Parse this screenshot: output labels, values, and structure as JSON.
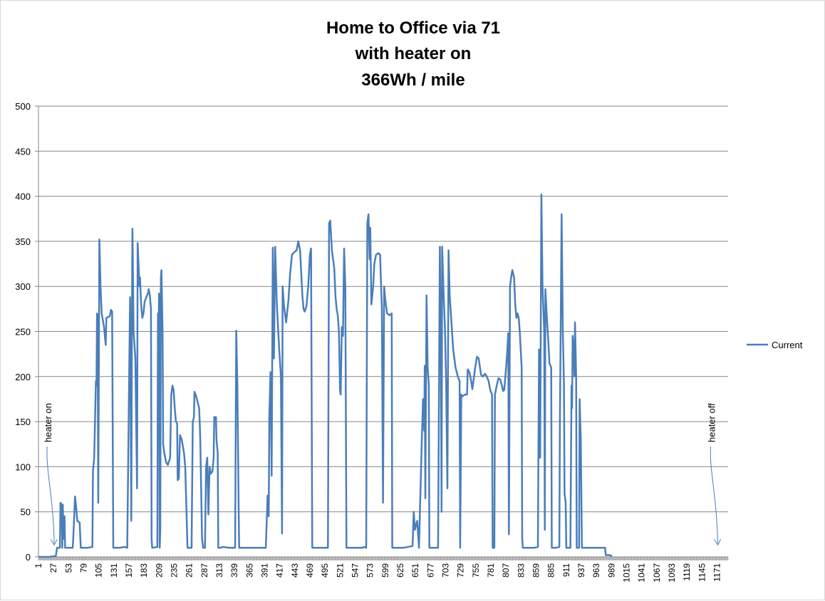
{
  "chart_data": {
    "type": "line",
    "title": [
      "Home to Office via 71",
      "with heater on",
      "366Wh / mile"
    ],
    "xlabel": "",
    "ylabel": "",
    "ylim": [
      0,
      500
    ],
    "yticks": [
      0,
      50,
      100,
      150,
      200,
      250,
      300,
      350,
      400,
      450,
      500
    ],
    "xlim": [
      1,
      1190
    ],
    "xticks": [
      1,
      27,
      53,
      79,
      105,
      131,
      157,
      183,
      209,
      235,
      261,
      287,
      313,
      339,
      365,
      391,
      417,
      443,
      469,
      495,
      521,
      547,
      573,
      599,
      625,
      651,
      677,
      703,
      729,
      755,
      781,
      807,
      833,
      859,
      885,
      911,
      937,
      963,
      989,
      1015,
      1041,
      1067,
      1093,
      1119,
      1145,
      1171
    ],
    "grid": true,
    "legend_position": "right",
    "series": [
      {
        "name": "Current",
        "color": "#4a7ebb",
        "points": [
          [
            1,
            0
          ],
          [
            20,
            0
          ],
          [
            31,
            1
          ],
          [
            33,
            10
          ],
          [
            38,
            10
          ],
          [
            39,
            60
          ],
          [
            41,
            58
          ],
          [
            42,
            10
          ],
          [
            43,
            58
          ],
          [
            44,
            20
          ],
          [
            46,
            45
          ],
          [
            47,
            10
          ],
          [
            60,
            10
          ],
          [
            61,
            20
          ],
          [
            64,
            67
          ],
          [
            66,
            55
          ],
          [
            68,
            40
          ],
          [
            72,
            38
          ],
          [
            74,
            10
          ],
          [
            86,
            10
          ],
          [
            94,
            11
          ],
          [
            95,
            95
          ],
          [
            97,
            110
          ],
          [
            100,
            195
          ],
          [
            101,
            190
          ],
          [
            102,
            270
          ],
          [
            103,
            265
          ],
          [
            104,
            60
          ],
          [
            106,
            352
          ],
          [
            108,
            300
          ],
          [
            110,
            270
          ],
          [
            114,
            255
          ],
          [
            117,
            235
          ],
          [
            118,
            265
          ],
          [
            124,
            267
          ],
          [
            126,
            274
          ],
          [
            128,
            272
          ],
          [
            130,
            10
          ],
          [
            140,
            10
          ],
          [
            150,
            11
          ],
          [
            154,
            10
          ],
          [
            157,
            180
          ],
          [
            159,
            288
          ],
          [
            161,
            40
          ],
          [
            162,
            250
          ],
          [
            163,
            364
          ],
          [
            165,
            250
          ],
          [
            168,
            220
          ],
          [
            171,
            76
          ],
          [
            172,
            348
          ],
          [
            175,
            300
          ],
          [
            176,
            310
          ],
          [
            178,
            280
          ],
          [
            180,
            265
          ],
          [
            182,
            270
          ],
          [
            184,
            283
          ],
          [
            190,
            293
          ],
          [
            191,
            297
          ],
          [
            193,
            290
          ],
          [
            195,
            275
          ],
          [
            196,
            20
          ],
          [
            197,
            10
          ],
          [
            206,
            11
          ],
          [
            207,
            270
          ],
          [
            208,
            250
          ],
          [
            209,
            292
          ],
          [
            210,
            10
          ],
          [
            211,
            30
          ],
          [
            212,
            310
          ],
          [
            213,
            318
          ],
          [
            215,
            250
          ],
          [
            216,
            125
          ],
          [
            218,
            115
          ],
          [
            221,
            105
          ],
          [
            224,
            102
          ],
          [
            228,
            110
          ],
          [
            230,
            180
          ],
          [
            232,
            190
          ],
          [
            234,
            185
          ],
          [
            236,
            165
          ],
          [
            238,
            150
          ],
          [
            240,
            148
          ],
          [
            241,
            85
          ],
          [
            243,
            87
          ],
          [
            245,
            135
          ],
          [
            248,
            130
          ],
          [
            252,
            115
          ],
          [
            254,
            100
          ],
          [
            258,
            10
          ],
          [
            265,
            10
          ],
          [
            267,
            150
          ],
          [
            269,
            155
          ],
          [
            270,
            183
          ],
          [
            272,
            180
          ],
          [
            276,
            170
          ],
          [
            278,
            165
          ],
          [
            279,
            150
          ],
          [
            280,
            130
          ],
          [
            283,
            20
          ],
          [
            285,
            10
          ],
          [
            288,
            10
          ],
          [
            290,
            100
          ],
          [
            292,
            110
          ],
          [
            294,
            47
          ],
          [
            296,
            100
          ],
          [
            298,
            92
          ],
          [
            301,
            95
          ],
          [
            303,
            110
          ],
          [
            304,
            155
          ],
          [
            307,
            155
          ],
          [
            308,
            130
          ],
          [
            310,
            115
          ],
          [
            311,
            10
          ],
          [
            314,
            10
          ],
          [
            320,
            11
          ],
          [
            330,
            10
          ],
          [
            340,
            10
          ],
          [
            342,
            251
          ],
          [
            344,
            190
          ],
          [
            346,
            60
          ],
          [
            347,
            10
          ],
          [
            380,
            10
          ],
          [
            385,
            10
          ],
          [
            393,
            10
          ],
          [
            396,
            68
          ],
          [
            398,
            45
          ],
          [
            399,
            155
          ],
          [
            401,
            205
          ],
          [
            403,
            90
          ],
          [
            405,
            343
          ],
          [
            407,
            220
          ],
          [
            409,
            344
          ],
          [
            412,
            280
          ],
          [
            416,
            230
          ],
          [
            418,
            210
          ],
          [
            419,
            200
          ],
          [
            421,
            26
          ],
          [
            422,
            300
          ],
          [
            424,
            280
          ],
          [
            428,
            260
          ],
          [
            432,
            285
          ],
          [
            435,
            315
          ],
          [
            438,
            335
          ],
          [
            442,
            338
          ],
          [
            446,
            340
          ],
          [
            449,
            350
          ],
          [
            452,
            340
          ],
          [
            456,
            290
          ],
          [
            458,
            275
          ],
          [
            460,
            272
          ],
          [
            463,
            278
          ],
          [
            466,
            300
          ],
          [
            469,
            335
          ],
          [
            471,
            342
          ],
          [
            473,
            10
          ],
          [
            482,
            10
          ],
          [
            500,
            10
          ],
          [
            502,
            370
          ],
          [
            504,
            373
          ],
          [
            507,
            340
          ],
          [
            511,
            320
          ],
          [
            513,
            290
          ],
          [
            515,
            275
          ],
          [
            517,
            268
          ],
          [
            519,
            250
          ],
          [
            521,
            185
          ],
          [
            522,
            180
          ],
          [
            524,
            255
          ],
          [
            526,
            245
          ],
          [
            528,
            342
          ],
          [
            530,
            300
          ],
          [
            532,
            10
          ],
          [
            534,
            10
          ],
          [
            560,
            10
          ],
          [
            562,
            11
          ],
          [
            566,
            10
          ],
          [
            568,
            370
          ],
          [
            570,
            380
          ],
          [
            572,
            330
          ],
          [
            573,
            365
          ],
          [
            575,
            280
          ],
          [
            578,
            300
          ],
          [
            580,
            325
          ],
          [
            583,
            335
          ],
          [
            587,
            337
          ],
          [
            590,
            335
          ],
          [
            593,
            275
          ],
          [
            595,
            60
          ],
          [
            597,
            300
          ],
          [
            599,
            285
          ],
          [
            602,
            270
          ],
          [
            606,
            268
          ],
          [
            610,
            270
          ],
          [
            611,
            10
          ],
          [
            630,
            10
          ],
          [
            646,
            12
          ],
          [
            648,
            50
          ],
          [
            650,
            30
          ],
          [
            654,
            40
          ],
          [
            657,
            10
          ],
          [
            662,
            130
          ],
          [
            664,
            175
          ],
          [
            666,
            140
          ],
          [
            667,
            212
          ],
          [
            668,
            65
          ],
          [
            670,
            290
          ],
          [
            672,
            210
          ],
          [
            674,
            190
          ],
          [
            675,
            10
          ],
          [
            683,
            10
          ],
          [
            690,
            10
          ],
          [
            693,
            344
          ],
          [
            695,
            200
          ],
          [
            696,
            50
          ],
          [
            697,
            344
          ],
          [
            699,
            300
          ],
          [
            702,
            250
          ],
          [
            704,
            190
          ],
          [
            706,
            76
          ],
          [
            708,
            340
          ],
          [
            710,
            290
          ],
          [
            713,
            260
          ],
          [
            716,
            230
          ],
          [
            720,
            210
          ],
          [
            724,
            200
          ],
          [
            727,
            195
          ],
          [
            728,
            10
          ],
          [
            730,
            180
          ],
          [
            732,
            178
          ],
          [
            736,
            180
          ],
          [
            740,
            180
          ],
          [
            741,
            208
          ],
          [
            744,
            205
          ],
          [
            747,
            195
          ],
          [
            749,
            186
          ],
          [
            752,
            200
          ],
          [
            754,
            210
          ],
          [
            757,
            222
          ],
          [
            760,
            220
          ],
          [
            764,
            202
          ],
          [
            767,
            200
          ],
          [
            771,
            203
          ],
          [
            774,
            200
          ],
          [
            777,
            195
          ],
          [
            780,
            185
          ],
          [
            783,
            180
          ],
          [
            784,
            10
          ],
          [
            787,
            10
          ],
          [
            788,
            180
          ],
          [
            791,
            190
          ],
          [
            794,
            198
          ],
          [
            797,
            197
          ],
          [
            800,
            190
          ],
          [
            802,
            184
          ],
          [
            804,
            185
          ],
          [
            806,
            200
          ],
          [
            809,
            225
          ],
          [
            811,
            248
          ],
          [
            812,
            25
          ],
          [
            814,
            300
          ],
          [
            816,
            310
          ],
          [
            818,
            318
          ],
          [
            821,
            310
          ],
          [
            823,
            280
          ],
          [
            825,
            265
          ],
          [
            827,
            270
          ],
          [
            829,
            265
          ],
          [
            831,
            248
          ],
          [
            834,
            210
          ],
          [
            835,
            20
          ],
          [
            836,
            10
          ],
          [
            855,
            10
          ],
          [
            862,
            11
          ],
          [
            864,
            230
          ],
          [
            866,
            110
          ],
          [
            868,
            402
          ],
          [
            870,
            300
          ],
          [
            873,
            250
          ],
          [
            874,
            30
          ],
          [
            875,
            297
          ],
          [
            878,
            260
          ],
          [
            880,
            240
          ],
          [
            882,
            215
          ],
          [
            885,
            210
          ],
          [
            886,
            10
          ],
          [
            893,
            10
          ],
          [
            899,
            11
          ],
          [
            900,
            150
          ],
          [
            902,
            300
          ],
          [
            903,
            380
          ],
          [
            905,
            250
          ],
          [
            907,
            190
          ],
          [
            908,
            70
          ],
          [
            910,
            60
          ],
          [
            911,
            10
          ],
          [
            918,
            10
          ],
          [
            920,
            190
          ],
          [
            921,
            165
          ],
          [
            922,
            245
          ],
          [
            924,
            230
          ],
          [
            925,
            200
          ],
          [
            926,
            260
          ],
          [
            928,
            200
          ],
          [
            929,
            10
          ],
          [
            933,
            10
          ],
          [
            934,
            175
          ],
          [
            936,
            130
          ],
          [
            938,
            10
          ],
          [
            946,
            10
          ],
          [
            960,
            10
          ],
          [
            970,
            10
          ],
          [
            978,
            10
          ],
          [
            979,
            2
          ],
          [
            985,
            2
          ],
          [
            990,
            1
          ]
        ]
      }
    ],
    "annotations": [
      {
        "text": "heater on",
        "target_x": 27,
        "target_y": 10
      },
      {
        "text": "heater off",
        "target_x": 1171,
        "target_y": 10
      }
    ]
  }
}
